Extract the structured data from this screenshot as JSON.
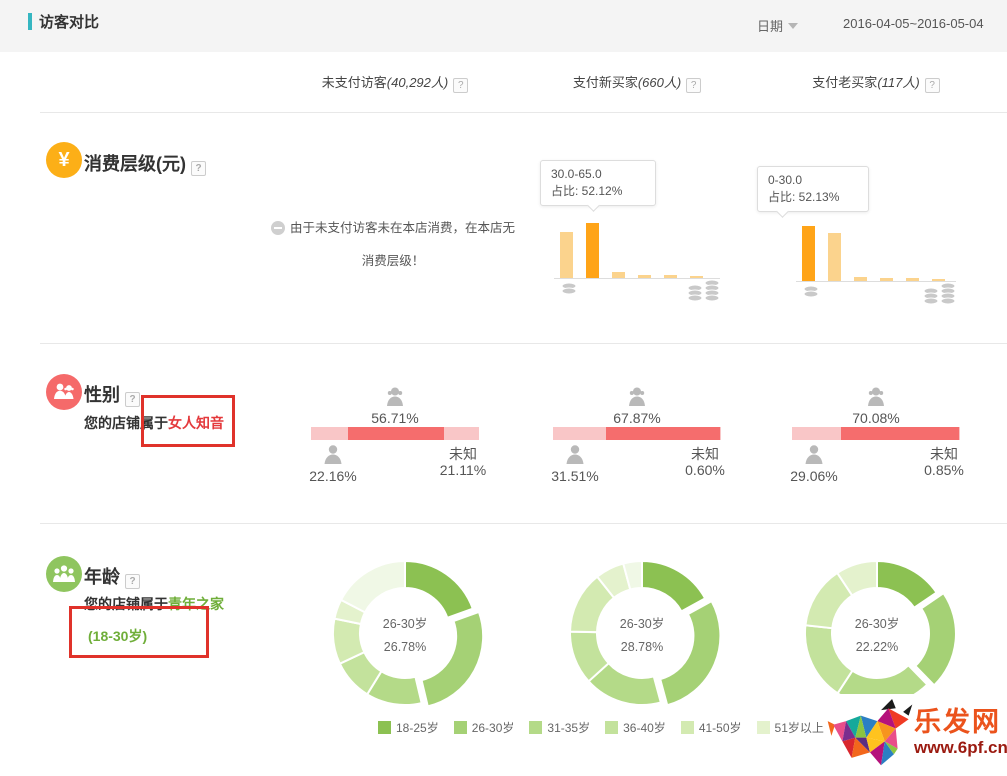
{
  "header": {
    "title": "访客对比",
    "date_label": "日期",
    "date_range": "2016-04-05~2016-05-04"
  },
  "misc": {
    "help_glyph": "?",
    "yen_glyph": "¥"
  },
  "columns": [
    {
      "name": "未支付访客",
      "count": "(40,292人)"
    },
    {
      "name": "支付新买家",
      "count": "(660人)"
    },
    {
      "name": "支付老买家",
      "count": "(117人)"
    }
  ],
  "consumption": {
    "title": "消费层级(元)",
    "note_line1": "由于未支付访客未在本店消费，在本店无",
    "note_line2": "消费层级！",
    "bar_colors": {
      "normal": "#fbd38d",
      "highlight": "#ffa418"
    },
    "charts": [
      {
        "tooltip": {
          "range": "30.0-65.0",
          "ratio": "占比: 52.12%"
        },
        "bars": [
          {
            "value": 44,
            "highlight": false
          },
          {
            "value": 52.12,
            "highlight": true
          },
          {
            "value": 6,
            "highlight": false
          },
          {
            "value": 2.5,
            "highlight": false
          },
          {
            "value": 2.5,
            "highlight": false
          },
          {
            "value": 2,
            "highlight": false
          }
        ]
      },
      {
        "tooltip": {
          "range": "0-30.0",
          "ratio": "占比: 52.13%"
        },
        "bars": [
          {
            "value": 52.13,
            "highlight": true
          },
          {
            "value": 46,
            "highlight": false
          },
          {
            "value": 4,
            "highlight": false
          },
          {
            "value": 2.5,
            "highlight": false
          },
          {
            "value": 2.5,
            "highlight": false
          },
          {
            "value": 2,
            "highlight": false
          }
        ]
      }
    ]
  },
  "gender": {
    "title": "性别",
    "subtitle_prefix": "您的店铺属于",
    "subtitle_highlight": "女人知音",
    "unknown_label": "未知",
    "colors": {
      "female": "#f56d6d",
      "other": "#f9c6c7"
    },
    "items": [
      {
        "female": "56.71%",
        "male": "22.16%",
        "unknown": "21.11%"
      },
      {
        "female": "67.87%",
        "male": "31.51%",
        "unknown": "0.60%"
      },
      {
        "female": "70.08%",
        "male": "29.06%",
        "unknown": "0.85%"
      }
    ]
  },
  "age": {
    "title": "年龄",
    "subtitle_prefix": "您的店铺属于",
    "subtitle_highlight": "青年之家",
    "subtitle_range": "(18-30岁)",
    "donuts": [
      {
        "center_label": "26-30岁",
        "center_value": "26.78%",
        "values": [
          19.5,
          26.78,
          12.5,
          9.2,
          10.2,
          4.4,
          17.4
        ]
      },
      {
        "center_label": "26-30岁",
        "center_value": "28.78%",
        "values": [
          17,
          28.78,
          17.5,
          12,
          14,
          6.5,
          4.2
        ]
      },
      {
        "center_label": "26-30岁",
        "center_value": "22.22%",
        "values": [
          15.5,
          22.22,
          21.5,
          17.5,
          14,
          9.3,
          0
        ]
      }
    ],
    "legend": [
      {
        "label": "18-25岁",
        "color": "#8cc152"
      },
      {
        "label": "26-30岁",
        "color": "#a5d175"
      },
      {
        "label": "31-35岁",
        "color": "#b4da88"
      },
      {
        "label": "36-40岁",
        "color": "#c3e29c"
      },
      {
        "label": "41-50岁",
        "color": "#d3eab1"
      },
      {
        "label": "51岁以上",
        "color": "#e4f2cd"
      },
      {
        "label": "未知",
        "color": "#f0f8e6"
      }
    ]
  },
  "watermark": {
    "site_name": "乐发网",
    "site_url": "www.6pf.cn"
  }
}
